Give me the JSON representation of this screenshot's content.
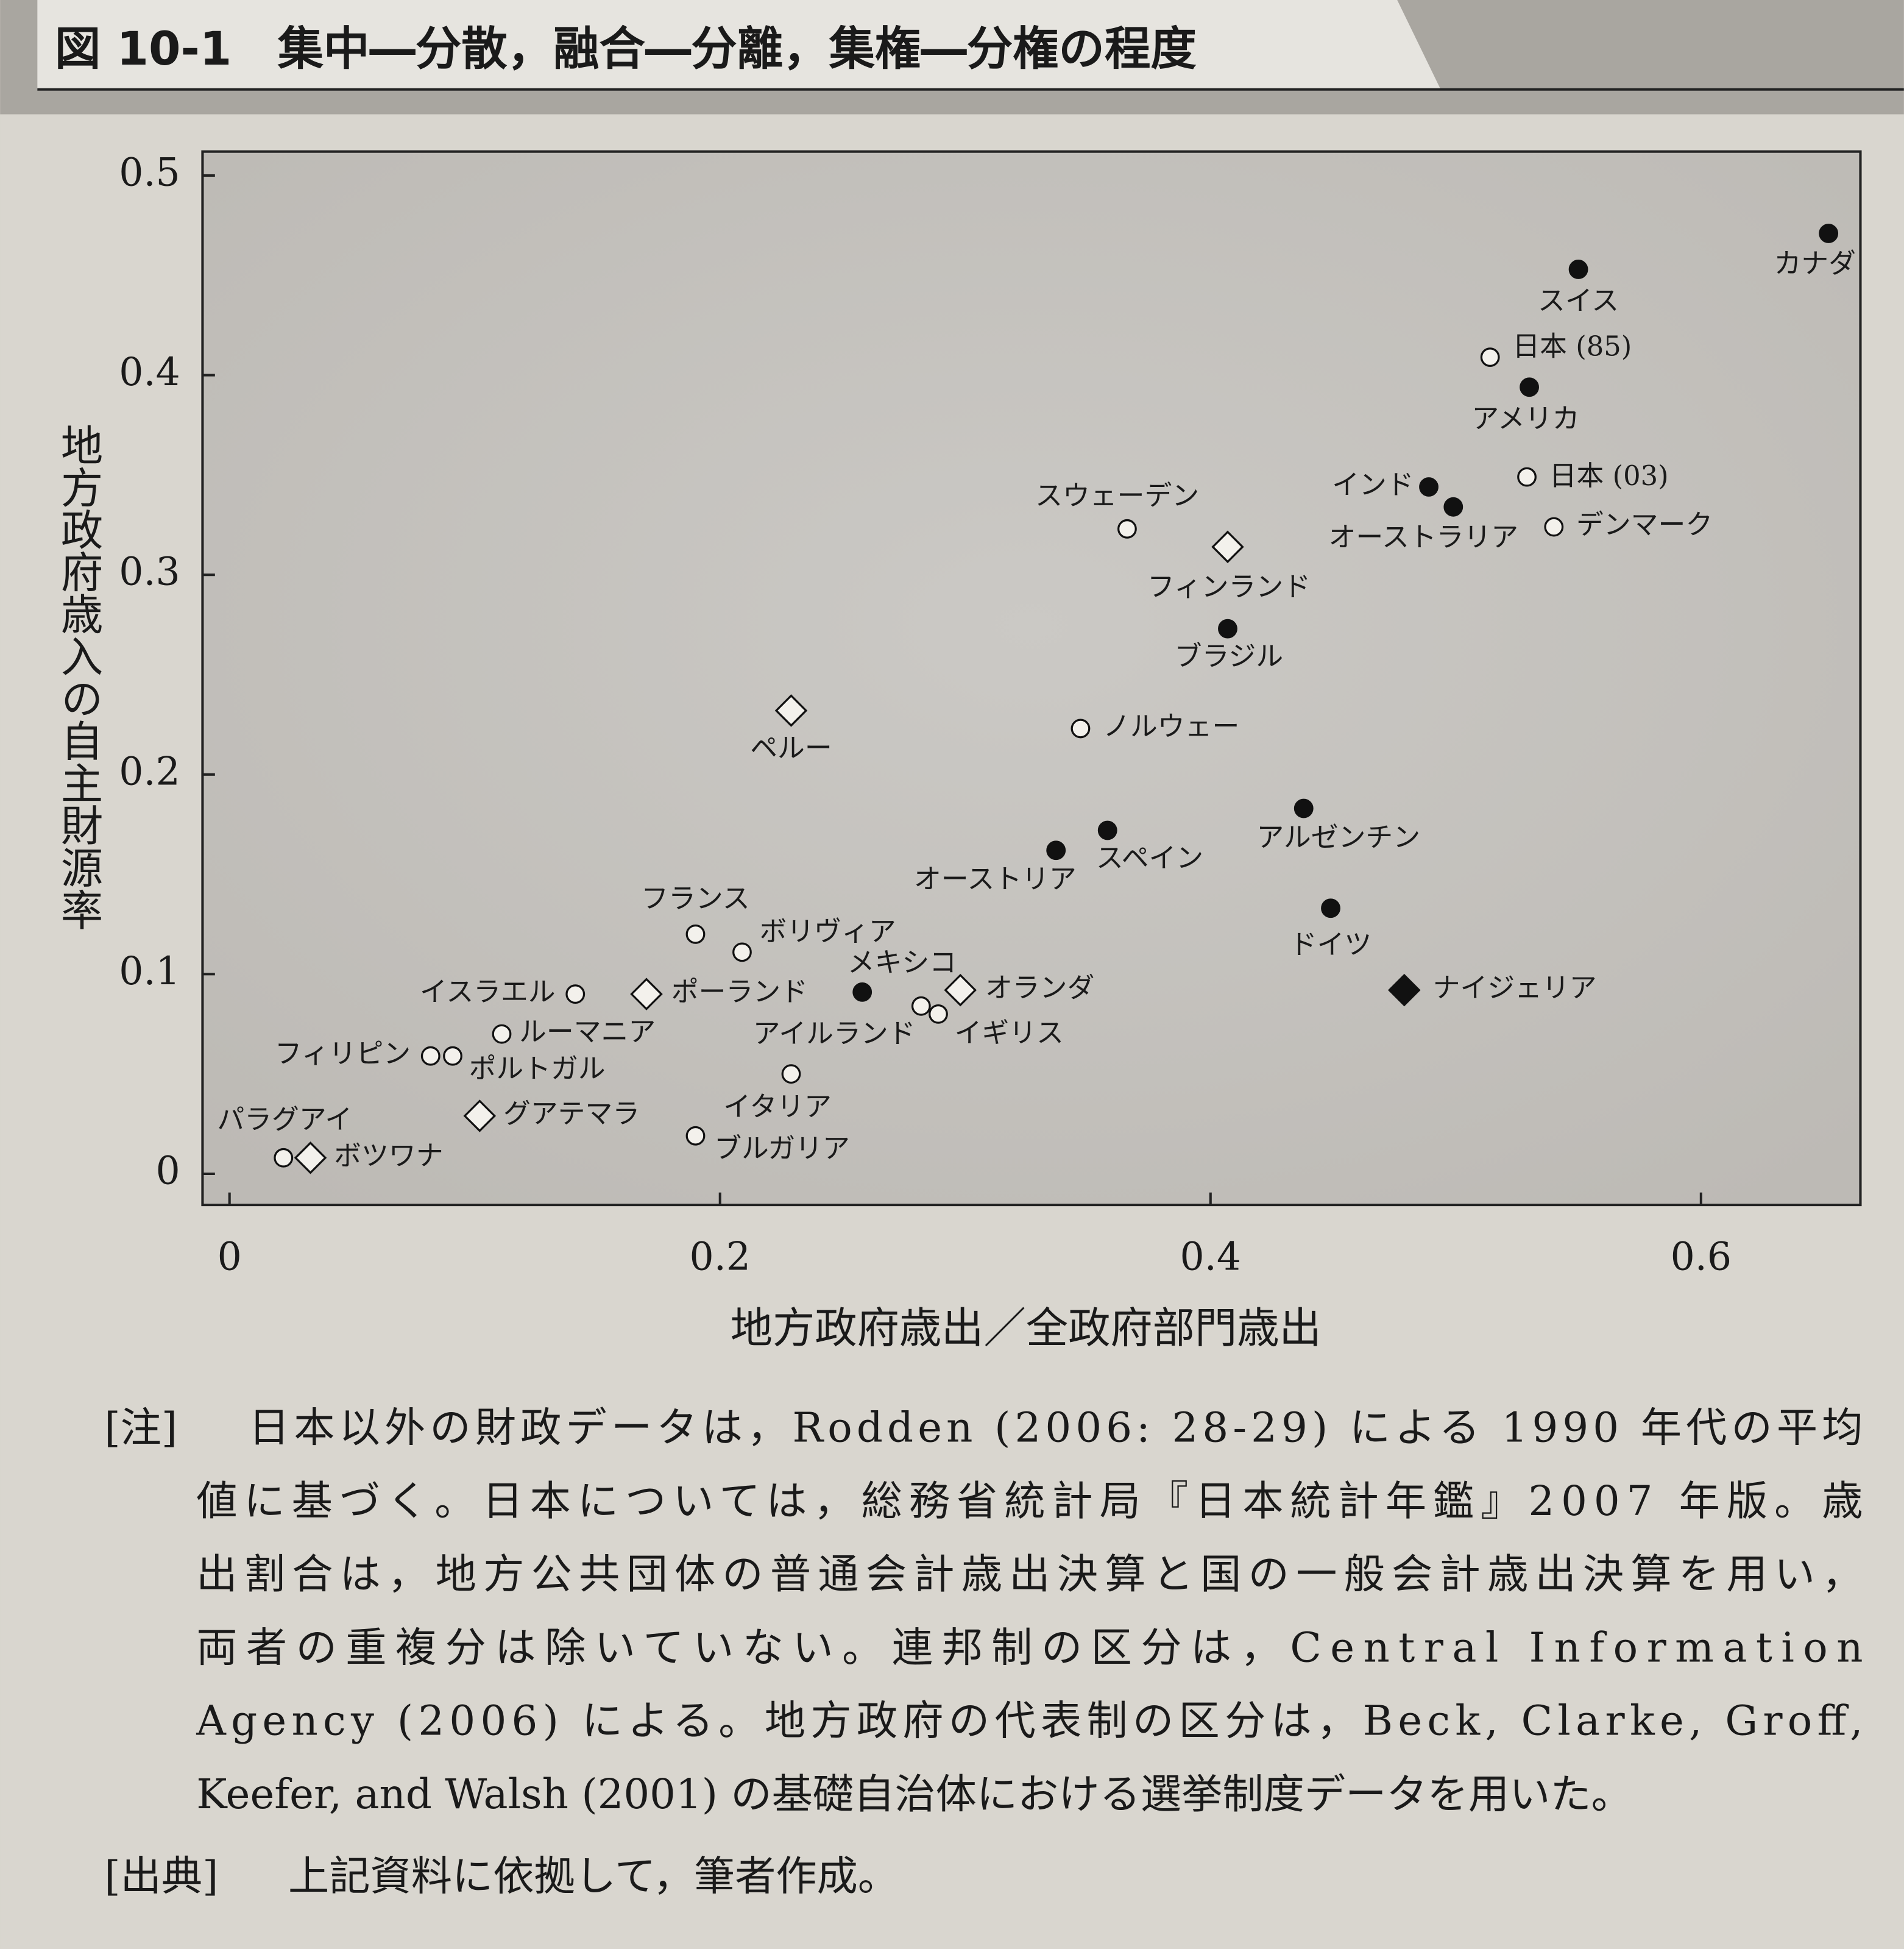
{
  "chart_data": {
    "type": "scatter",
    "title": "図 10-1　集中―分散，融合―分離，集権―分権の程度",
    "x_label": "地方政府歳出／全政府部門歳出",
    "y_label": "地方政府歳入の自主財源率",
    "xlim": [
      -0.011,
      0.665
    ],
    "ylim": [
      -0.0156,
      0.512
    ],
    "xticks": [
      0,
      0.2,
      0.4,
      0.6
    ],
    "yticks": [
      0,
      0.1,
      0.2,
      0.3,
      0.4,
      0.5
    ],
    "points": [
      {
        "label": "カナダ",
        "x": 0.652,
        "y": 0.471,
        "marker": "filled-circle"
      },
      {
        "label": "スイス",
        "x": 0.55,
        "y": 0.453,
        "marker": "filled-circle"
      },
      {
        "label": "日本 (85)",
        "x": 0.514,
        "y": 0.409,
        "marker": "open-circle"
      },
      {
        "label": "アメリカ",
        "x": 0.53,
        "y": 0.394,
        "marker": "filled-circle"
      },
      {
        "label": "日本 (03)",
        "x": 0.529,
        "y": 0.349,
        "marker": "open-circle"
      },
      {
        "label": "インド",
        "x": 0.489,
        "y": 0.344,
        "marker": "filled-circle"
      },
      {
        "label": "オーストラリア",
        "x": 0.499,
        "y": 0.334,
        "marker": "filled-circle"
      },
      {
        "label": "デンマーク",
        "x": 0.54,
        "y": 0.324,
        "marker": "open-circle"
      },
      {
        "label": "スウェーデン",
        "x": 0.366,
        "y": 0.323,
        "marker": "open-circle"
      },
      {
        "label": "フィンランド",
        "x": 0.407,
        "y": 0.314,
        "marker": "open-diamond"
      },
      {
        "label": "ブラジル",
        "x": 0.407,
        "y": 0.273,
        "marker": "filled-circle"
      },
      {
        "label": "ペルー",
        "x": 0.229,
        "y": 0.232,
        "marker": "open-diamond"
      },
      {
        "label": "ノルウェー",
        "x": 0.347,
        "y": 0.223,
        "marker": "open-circle"
      },
      {
        "label": "アルゼンチン",
        "x": 0.438,
        "y": 0.183,
        "marker": "filled-circle"
      },
      {
        "label": "スペイン",
        "x": 0.358,
        "y": 0.172,
        "marker": "filled-circle"
      },
      {
        "label": "オーストリア",
        "x": 0.337,
        "y": 0.162,
        "marker": "filled-circle"
      },
      {
        "label": "ドイツ",
        "x": 0.449,
        "y": 0.133,
        "marker": "filled-circle"
      },
      {
        "label": "フランス",
        "x": 0.19,
        "y": 0.12,
        "marker": "open-circle"
      },
      {
        "label": "ボリヴィア",
        "x": 0.209,
        "y": 0.111,
        "marker": "open-circle"
      },
      {
        "label": "メキシコ",
        "x": 0.258,
        "y": 0.091,
        "marker": "filled-circle"
      },
      {
        "label": "ナイジェリア",
        "x": 0.479,
        "y": 0.092,
        "marker": "filled-diamond"
      },
      {
        "label": "オランダ",
        "x": 0.298,
        "y": 0.092,
        "marker": "open-diamond"
      },
      {
        "label": "ポーランド",
        "x": 0.17,
        "y": 0.09,
        "marker": "open-diamond"
      },
      {
        "label": "イスラエル",
        "x": 0.141,
        "y": 0.09,
        "marker": "open-circle"
      },
      {
        "label": "アイルランド",
        "x": 0.282,
        "y": 0.084,
        "marker": "open-circle"
      },
      {
        "label": "イギリス",
        "x": 0.289,
        "y": 0.08,
        "marker": "open-circle"
      },
      {
        "label": "ルーマニア",
        "x": 0.111,
        "y": 0.07,
        "marker": "open-circle"
      },
      {
        "label": "フィリピン",
        "x": 0.082,
        "y": 0.059,
        "marker": "open-circle"
      },
      {
        "label": "ポルトガル",
        "x": 0.091,
        "y": 0.059,
        "marker": "open-circle"
      },
      {
        "label": "イタリア",
        "x": 0.229,
        "y": 0.05,
        "marker": "open-circle"
      },
      {
        "label": "グアテマラ",
        "x": 0.102,
        "y": 0.029,
        "marker": "open-diamond"
      },
      {
        "label": "ブルガリア",
        "x": 0.19,
        "y": 0.019,
        "marker": "open-circle"
      },
      {
        "label": "パラグアイ",
        "x": 0.022,
        "y": 0.008,
        "marker": "open-circle"
      },
      {
        "label": "ボツワナ",
        "x": 0.033,
        "y": 0.008,
        "marker": "open-diamond"
      }
    ]
  },
  "note": {
    "label": "[注]",
    "lines": [
      "日本以外の財政データは，Rodden (2006: 28-29) による 1990 年代の平均",
      "値に基づく。日本については，総務省統計局『日本統計年鑑』2007 年版。歳",
      "出割合は，地方公共団体の普通会計歳出決算と国の一般会計歳出決算を用い，",
      "両者の重複分は除いていない。連邦制の区分は，Central Information",
      "Agency (2006) による。地方政府の代表制の区分は，Beck, Clarke, Groff,",
      "Keefer, and Walsh (2001) の基礎自治体における選挙制度データを用いた。"
    ]
  },
  "source": {
    "label": "[出典]",
    "text": "上記資料に依拠して，筆者作成。"
  }
}
